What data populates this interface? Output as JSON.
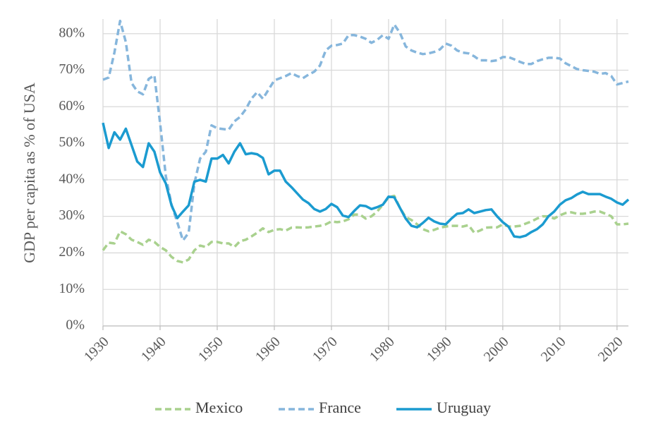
{
  "chart_data": {
    "type": "line",
    "y_label": "GDP per capita as % of USA",
    "x": [
      1930,
      1931,
      1932,
      1933,
      1934,
      1935,
      1936,
      1937,
      1938,
      1939,
      1940,
      1941,
      1942,
      1943,
      1944,
      1945,
      1946,
      1947,
      1948,
      1949,
      1950,
      1951,
      1952,
      1953,
      1954,
      1955,
      1956,
      1957,
      1958,
      1959,
      1960,
      1961,
      1962,
      1963,
      1964,
      1965,
      1966,
      1967,
      1968,
      1969,
      1970,
      1971,
      1972,
      1973,
      1974,
      1975,
      1976,
      1977,
      1978,
      1979,
      1980,
      1981,
      1982,
      1983,
      1984,
      1985,
      1986,
      1987,
      1988,
      1989,
      1990,
      1991,
      1992,
      1993,
      1994,
      1995,
      1996,
      1997,
      1998,
      1999,
      2000,
      2001,
      2002,
      2003,
      2004,
      2005,
      2006,
      2007,
      2008,
      2009,
      2010,
      2011,
      2012,
      2013,
      2014,
      2015,
      2016,
      2017,
      2018,
      2019,
      2020,
      2021,
      2022
    ],
    "series": [
      {
        "name": "Mexico",
        "color": "#a9d18e",
        "dashed": true,
        "values": [
          20.7,
          22.8,
          22.6,
          25.9,
          25.1,
          23.6,
          23,
          22.2,
          23.6,
          23,
          21.6,
          20.7,
          18.9,
          17.8,
          17.4,
          18.2,
          20.7,
          22,
          21.6,
          23,
          23,
          22.6,
          22.6,
          21.6,
          23.2,
          23.6,
          24.5,
          25.5,
          26.7,
          25.7,
          26.3,
          26.5,
          26.1,
          26.9,
          27,
          26.9,
          27,
          27.2,
          27.4,
          27.8,
          28.6,
          28.4,
          28.6,
          29.2,
          30.5,
          30.5,
          29.4,
          30,
          31.3,
          33.2,
          35.2,
          35.6,
          32.3,
          29.8,
          29,
          27.8,
          26.5,
          25.9,
          26.3,
          26.9,
          27.2,
          27.4,
          27.4,
          27.2,
          27.6,
          25.5,
          26.1,
          26.9,
          27,
          27,
          27.8,
          27.2,
          27.2,
          27.4,
          28,
          28.6,
          29.4,
          30,
          30,
          29.4,
          30.3,
          30.9,
          31.1,
          30.7,
          30.7,
          30.9,
          31.3,
          31.3,
          30.7,
          30,
          27.8,
          27.8,
          28
        ]
      },
      {
        "name": "France",
        "color": "#86b6dc",
        "dashed": true,
        "values": [
          67.4,
          68,
          74.8,
          83.5,
          77.7,
          66.5,
          64.2,
          63.4,
          67.6,
          68.6,
          55.5,
          41,
          33.2,
          28.4,
          23.4,
          25.5,
          39,
          45.8,
          47.7,
          54.9,
          54.1,
          53.9,
          53.7,
          56,
          57.2,
          59.3,
          62.2,
          64,
          62.2,
          64.7,
          67.2,
          67.8,
          68.4,
          69.2,
          68.4,
          67.8,
          68.8,
          69.6,
          71.3,
          75.4,
          76.7,
          76.9,
          77.3,
          79.6,
          79.6,
          79.2,
          78.6,
          77.5,
          78.3,
          79.6,
          78.6,
          82.5,
          80.2,
          76.5,
          75.4,
          74.8,
          74.4,
          74.6,
          75,
          75.7,
          77.3,
          76.7,
          75.4,
          74.8,
          74.6,
          73.8,
          72.7,
          72.7,
          72.5,
          72.7,
          73.6,
          73.6,
          73,
          72.3,
          71.7,
          71.7,
          72.5,
          73,
          73.4,
          73.4,
          73.2,
          71.9,
          71.1,
          70.3,
          70,
          69.8,
          69.6,
          69,
          69.2,
          68.4,
          66.1,
          66.5,
          66.9
        ]
      },
      {
        "name": "Uruguay",
        "color": "#1b9bd0",
        "dashed": false,
        "values": [
          55.6,
          48.7,
          53,
          51,
          54,
          49.5,
          45,
          43.5,
          50,
          47.7,
          42,
          39,
          33,
          29.5,
          31.3,
          33,
          39.5,
          40,
          39.5,
          45.8,
          45.8,
          46.8,
          44.5,
          47.7,
          50,
          47,
          47.3,
          47,
          46,
          41.5,
          42.5,
          42.5,
          39.5,
          38,
          36.3,
          34.6,
          33.6,
          32,
          31.3,
          32,
          33.4,
          32.5,
          30.2,
          29.8,
          31.5,
          33,
          32.8,
          32,
          32.5,
          33.2,
          35.4,
          35.2,
          32.3,
          29.4,
          27.4,
          27,
          28.2,
          29.6,
          28.6,
          28,
          27.8,
          29.4,
          30.7,
          30.9,
          31.9,
          30.9,
          31.3,
          31.7,
          31.9,
          30,
          28.4,
          27.2,
          24.5,
          24.3,
          24.7,
          25.7,
          26.5,
          27.8,
          30,
          31.3,
          33.2,
          34.4,
          35,
          36,
          36.7,
          36.1,
          36.1,
          36.1,
          35.4,
          34.8,
          33.8,
          33.2,
          34.6
        ]
      }
    ],
    "xlim": [
      1930,
      2022
    ],
    "xticks": [
      1930,
      1940,
      1950,
      1960,
      1970,
      1980,
      1990,
      2000,
      2010,
      2020
    ],
    "ylim": [
      0,
      84
    ],
    "yticks": [
      {
        "value": 0,
        "label": "0%"
      },
      {
        "value": 10,
        "label": "10%"
      },
      {
        "value": 20,
        "label": "20%"
      },
      {
        "value": 30,
        "label": "30%"
      },
      {
        "value": 40,
        "label": "40%"
      },
      {
        "value": 50,
        "label": "50%"
      },
      {
        "value": 60,
        "label": "60%"
      },
      {
        "value": 70,
        "label": "70%"
      },
      {
        "value": 80,
        "label": "80%"
      }
    ],
    "grid": true,
    "legend": "bottom"
  }
}
